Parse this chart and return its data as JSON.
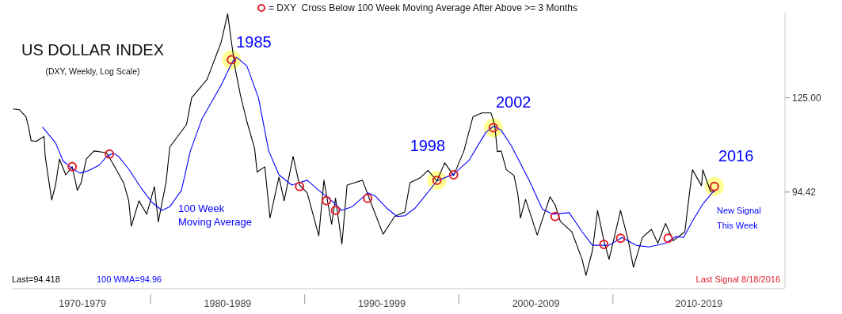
{
  "chart_data": {
    "type": "line",
    "title": "US DOLLAR INDEX",
    "subtitle": "(DXY, Weekly, Log Scale)",
    "log": true,
    "ylim": [
      71,
      161
    ],
    "yticks": [
      {
        "value": 94.42,
        "label": "94.42"
      },
      {
        "value": 125,
        "label": "125.00"
      }
    ],
    "xlim": [
      "1971-01",
      "2021-03"
    ],
    "xticks": [
      {
        "value": "1975-08",
        "label": "1970-1979"
      },
      {
        "value": "1980-01",
        "label": null
      },
      {
        "value": "1985-01",
        "label": "1980-1989"
      },
      {
        "value": "1990-01",
        "label": null
      },
      {
        "value": "1995-01",
        "label": "1990-1999"
      },
      {
        "value": "2000-01",
        "label": null
      },
      {
        "value": "2005-01",
        "label": "2000-2009"
      },
      {
        "value": "2010-01",
        "label": null
      },
      {
        "value": "2015-08",
        "label": "2010-2019"
      }
    ],
    "legend": "top",
    "annotations": [
      "Last=94.418",
      "100 WMA=94.96",
      "Last Signal 8/18/2016",
      "New Signal This Week",
      {
        "text": "1985",
        "x": "1985-04",
        "y": 140.0
      },
      {
        "text": "1998",
        "x": "1998-08",
        "y": 97.8
      },
      {
        "text": "2002",
        "x": "2002-04",
        "y": 114.3
      },
      {
        "text": "2016",
        "x": "2016-08",
        "y": 96.0
      }
    ],
    "series": [
      {
        "type": "bubble",
        "color": "#ffff80",
        "x": [
          "1985-04",
          "1998-08",
          "2002-04",
          "2016-08"
        ],
        "values": [
          140.0,
          97.8,
          114.3,
          96.0
        ],
        "sizes": [
          1,
          1,
          1,
          1
        ]
      },
      {
        "color": "#000000",
        "x": [
          "1971-02",
          "1971-07",
          "1971-12",
          "1972-02",
          "1972-04",
          "1972-08",
          "1973-02",
          "1973-03",
          "1973-08",
          "1973-11",
          "1974-02",
          "1974-07",
          "1974-12",
          "1975-04",
          "1975-07",
          "1975-11",
          "1976-05",
          "1976-12",
          "1977-03",
          "1977-09",
          "1978-04",
          "1978-08",
          "1978-10",
          "1979-04",
          "1979-10",
          "1980-04",
          "1980-07",
          "1981-01",
          "1981-04",
          "1982-05",
          "1982-09",
          "1983-09",
          "1984-08",
          "1985-01",
          "1985-04",
          "1985-07",
          "1985-11",
          "1986-04",
          "1986-10",
          "1986-12",
          "1987-06",
          "1987-10",
          "1988-05",
          "1988-09",
          "1989-04",
          "1989-09",
          "1990-03",
          "1990-12",
          "1991-04",
          "1991-10",
          "1992-01",
          "1992-06",
          "1992-10",
          "1993-04",
          "1993-10",
          "1994-05",
          "1995-02",
          "1995-11",
          "1996-07",
          "1996-11",
          "1997-07",
          "1998-01",
          "1998-08",
          "1999-02",
          "1999-09",
          "2000-05",
          "2000-12",
          "2001-07",
          "2002-02",
          "2002-05",
          "2002-07",
          "2002-10",
          "2003-02",
          "2003-08",
          "2003-11",
          "2004-01",
          "2004-05",
          "2005-02",
          "2005-12",
          "2006-04",
          "2006-08",
          "2007-05",
          "2008-01",
          "2008-04",
          "2008-09",
          "2009-01",
          "2009-06",
          "2009-10",
          "2010-07",
          "2011-01",
          "2011-05",
          "2011-12",
          "2012-07",
          "2012-12",
          "2013-06",
          "2013-12",
          "2014-09",
          "2015-01",
          "2015-03",
          "2015-10",
          "2015-11",
          "2016-05",
          "2016-08"
        ],
        "values": [
          120.9,
          120.6,
          118.1,
          114.5,
          110.0,
          109.8,
          111.4,
          105.0,
          92.2,
          96.4,
          104.2,
          99.4,
          101.8,
          94.9,
          97.1,
          104.2,
          106.7,
          106.3,
          106.0,
          101.8,
          97.1,
          92.0,
          85.3,
          92.0,
          88.4,
          96.0,
          86.4,
          97.1,
          108.0,
          115.4,
          125.0,
          132.0,
          147.5,
          160.5,
          147.5,
          136.1,
          125.9,
          116.5,
          107.5,
          100.2,
          101.8,
          87.4,
          98.7,
          92.0,
          105.0,
          96.4,
          94.2,
          82.9,
          97.8,
          85.8,
          92.7,
          80.9,
          96.4,
          97.1,
          97.8,
          91.1,
          83.3,
          87.8,
          89.0,
          97.1,
          98.5,
          100.7,
          97.6,
          103.0,
          99.2,
          106.7,
          118.1,
          119.5,
          119.5,
          115.4,
          106.5,
          106.7,
          100.9,
          99.2,
          93.8,
          87.4,
          92.4,
          83.1,
          93.1,
          90.9,
          86.6,
          83.9,
          77.3,
          73.7,
          79.3,
          89.4,
          81.7,
          77.3,
          89.4,
          81.7,
          75.5,
          82.5,
          84.5,
          81.1,
          86.0,
          81.7,
          83.9,
          95.3,
          100.9,
          96.2,
          100.9,
          94.6,
          94.42
        ]
      },
      {
        "name": "100 Week Moving Average",
        "color": "#0000ff",
        "x": [
          "1973-01",
          "1973-11",
          "1974-05",
          "1974-12",
          "1975-06",
          "1976-01",
          "1976-09",
          "1977-03",
          "1977-08",
          "1977-12",
          "1978-08",
          "1979-06",
          "1980-02",
          "1980-10",
          "1981-04",
          "1982-01",
          "1982-08",
          "1983-05",
          "1984-08",
          "1985-05",
          "1985-08",
          "1986-04",
          "1987-01",
          "1987-09",
          "1988-05",
          "1989-03",
          "1990-03",
          "1990-12",
          "1991-10",
          "1992-06",
          "1993-02",
          "1994-02",
          "1994-08",
          "1995-05",
          "1996-01",
          "1996-07",
          "1997-03",
          "1998-08",
          "1999-09",
          "2000-09",
          "2001-10",
          "2002-04",
          "2002-10",
          "2003-06",
          "2004-08",
          "2005-06",
          "2006-02",
          "2007-03",
          "2008-01",
          "2008-09",
          "2009-10",
          "2010-08",
          "2011-07",
          "2012-05",
          "2013-06",
          "2014-02",
          "2014-08",
          "2015-03",
          "2015-11",
          "2016-08"
        ],
        "values": [
          114.5,
          109.3,
          103.5,
          101.3,
          99.9,
          100.7,
          102.3,
          105.0,
          106.0,
          105.0,
          101.1,
          95.4,
          91.6,
          89.4,
          90.4,
          94.9,
          106.7,
          117.3,
          129.8,
          139.3,
          141.0,
          137.4,
          125.0,
          106.7,
          99.4,
          96.4,
          97.8,
          94.9,
          92.0,
          89.4,
          90.4,
          94.2,
          93.3,
          90.0,
          87.8,
          88.0,
          90.0,
          97.6,
          99.6,
          103.8,
          112.7,
          114.8,
          113.5,
          108.3,
          97.6,
          89.8,
          88.4,
          88.8,
          83.9,
          80.6,
          80.6,
          82.5,
          80.6,
          80.2,
          81.1,
          82.7,
          82.5,
          86.6,
          91.1,
          94.96
        ]
      },
      {
        "type": "scatter",
        "name": "= DXY  Cross Below 100 Week Moving Average After Above >= 3 Months",
        "color": "#e0202a",
        "marker": "circle",
        "x": [
          "1974-12",
          "1977-05",
          "1985-04",
          "1989-09",
          "1991-06",
          "1992-01",
          "1994-02",
          "1998-08",
          "1999-09",
          "2002-04",
          "2006-04",
          "2009-06",
          "2010-07",
          "2013-08",
          "2016-08"
        ],
        "values": [
          101.8,
          105.7,
          140.0,
          96.0,
          92.0,
          89.4,
          92.7,
          97.8,
          99.4,
          114.3,
          87.8,
          80.8,
          82.3,
          82.3,
          96.0
        ]
      }
    ]
  }
}
